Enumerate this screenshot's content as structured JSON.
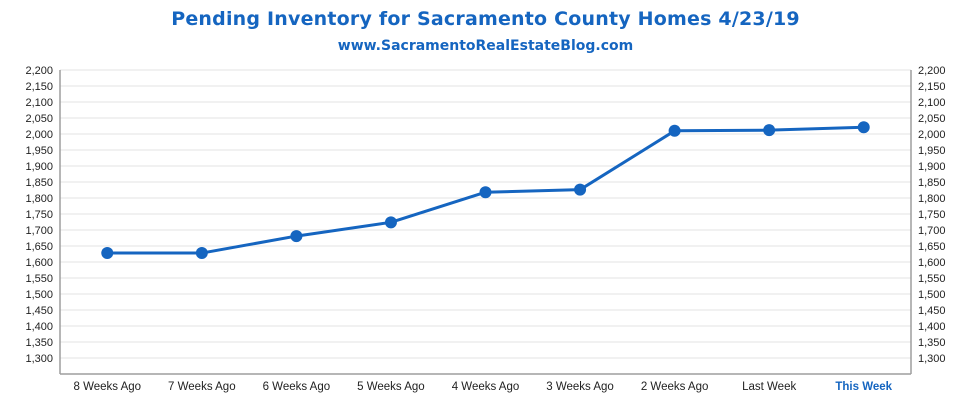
{
  "chart_data": {
    "type": "line",
    "title": "Pending Inventory for Sacramento County Homes 4/23/19",
    "subtitle": "www.SacramentoRealEstateBlog.com",
    "categories": [
      "8 Weeks Ago",
      "7 Weeks Ago",
      "6 Weeks Ago",
      "5 Weeks Ago",
      "4 Weeks Ago",
      "3 Weeks Ago",
      "2 Weeks Ago",
      "Last Week",
      "This Week"
    ],
    "highlight_category": "This Week",
    "series": [
      {
        "values": [
          1628,
          1628,
          1681,
          1724,
          1818,
          1826,
          2010,
          2012,
          2021
        ]
      }
    ],
    "ylim": [
      1250,
      2200
    ],
    "yticks": [
      1300,
      1350,
      1400,
      1450,
      1500,
      1550,
      1600,
      1650,
      1700,
      1750,
      1800,
      1850,
      1900,
      1950,
      2000,
      2050,
      2100,
      2150,
      2200
    ],
    "ytick_labels": [
      "1,300",
      "1,350",
      "1,400",
      "1,450",
      "1,500",
      "1,550",
      "1,600",
      "1,650",
      "1,700",
      "1,750",
      "1,800",
      "1,850",
      "1,900",
      "1,950",
      "2,000",
      "2,050",
      "2,100",
      "2,150",
      "2,200"
    ],
    "secondary_y_axis": true,
    "grid": true,
    "line_color": "#1565c0",
    "grid_color": "#e3e3e3",
    "highlight_color": "#1565c0"
  }
}
